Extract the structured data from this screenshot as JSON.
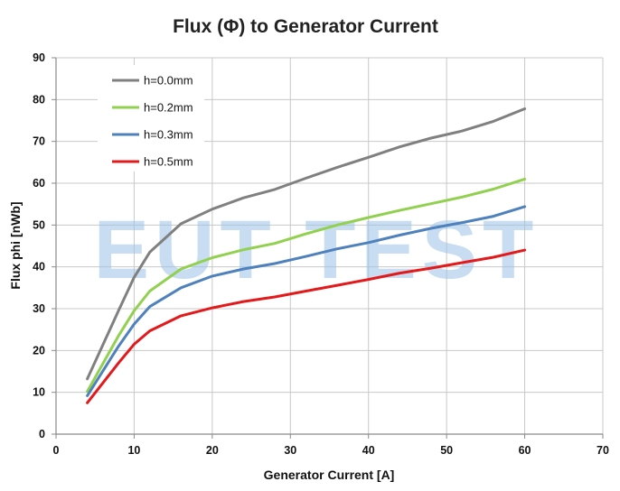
{
  "watermark": "EUT TEST",
  "chart_data": {
    "type": "line",
    "title": "Flux (Φ) to Generator Current",
    "xlabel": "Generator Current [A]",
    "ylabel": "Flux phi [nWb]",
    "xlim": [
      0,
      70
    ],
    "ylim": [
      0,
      90
    ],
    "xticks": [
      0,
      10,
      20,
      30,
      40,
      50,
      60,
      70
    ],
    "yticks": [
      0,
      10,
      20,
      30,
      40,
      50,
      60,
      70,
      80,
      90
    ],
    "grid": true,
    "legend_position": "top-left",
    "x": [
      4,
      8,
      10,
      12,
      16,
      20,
      24,
      28,
      32,
      36,
      40,
      44,
      48,
      52,
      56,
      60
    ],
    "series": [
      {
        "name": "h=0.0mm",
        "color": "#808080",
        "values": [
          13.2,
          29.5,
          37.5,
          43.5,
          50.3,
          53.8,
          56.5,
          58.5,
          61.2,
          63.8,
          66.2,
          68.7,
          70.8,
          72.5,
          74.8,
          77.8
        ]
      },
      {
        "name": "h=0.2mm",
        "color": "#92d050",
        "values": [
          10.2,
          23.5,
          29.5,
          34.2,
          39.5,
          42.2,
          44.1,
          45.6,
          47.9,
          50.0,
          51.8,
          53.5,
          55.1,
          56.7,
          58.6,
          61.0
        ]
      },
      {
        "name": "h=0.3mm",
        "color": "#4f81bd",
        "values": [
          9.2,
          21.0,
          26.3,
          30.5,
          35.0,
          37.8,
          39.5,
          40.8,
          42.5,
          44.3,
          45.8,
          47.6,
          49.2,
          50.6,
          52.1,
          54.4
        ]
      },
      {
        "name": "h=0.5mm",
        "color": "#e31a1c",
        "values": [
          7.5,
          17.0,
          21.5,
          24.7,
          28.3,
          30.2,
          31.7,
          32.8,
          34.2,
          35.6,
          37.0,
          38.5,
          39.7,
          41.0,
          42.3,
          44.0
        ]
      }
    ]
  }
}
